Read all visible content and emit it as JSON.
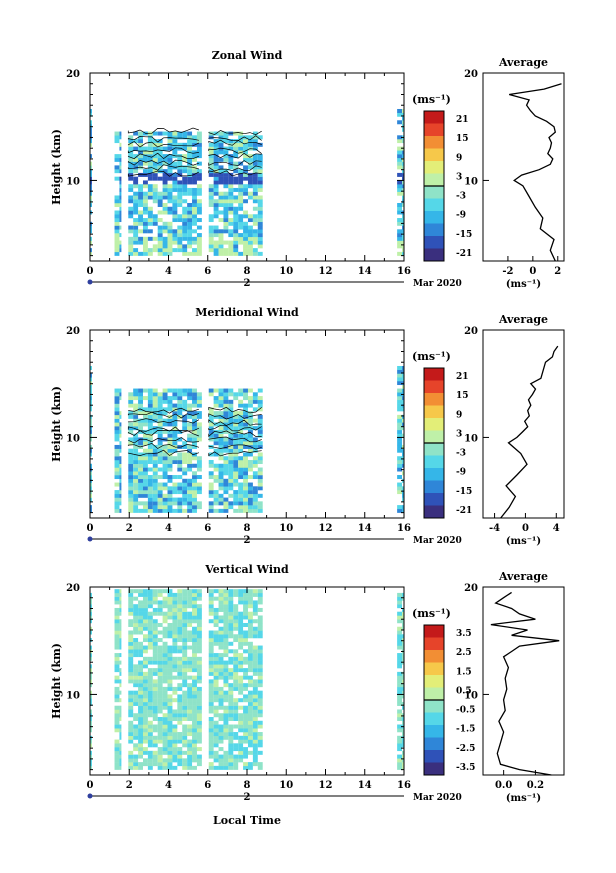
{
  "figure": {
    "xlabel": "Local Time",
    "date_label": "Mar 2020",
    "day_label": "2"
  },
  "chart_data": [
    {
      "type": "heatmap",
      "title": "Zonal Wind",
      "ylabel": "Height (km)",
      "units": "(ms⁻¹)",
      "xlim": [
        0,
        16
      ],
      "ylim": [
        2.5,
        20
      ],
      "xticks": [
        "0",
        "2",
        "4",
        "6",
        "8",
        "10",
        "12",
        "14",
        "16"
      ],
      "yticks": [
        "10",
        "20"
      ],
      "colorbar_ticks": [
        "21",
        "15",
        "9",
        "3",
        "-3",
        "-9",
        "-15",
        "-21"
      ],
      "data_intervals": [
        [
          0,
          0.1
        ],
        [
          1.25,
          1.6
        ],
        [
          1.95,
          5.7
        ],
        [
          6.05,
          8.8
        ],
        [
          15.65,
          16
        ]
      ],
      "top_km": 14.2,
      "profile": {
        "title": "Average",
        "xlabel": "(ms⁻¹)",
        "xlim": [
          -4,
          2.5
        ],
        "xticks": [
          "-2",
          "0",
          "2"
        ],
        "heights": [
          2.5,
          3.5,
          4.5,
          5.5,
          6.5,
          7.5,
          8.5,
          9.5,
          10.0,
          10.5,
          11.0,
          11.5,
          12.0,
          12.5,
          13.0,
          13.5,
          14.0,
          14.5,
          15.0,
          15.5,
          16.0,
          16.5,
          17.0,
          17.5,
          18.0,
          18.5,
          19.0
        ],
        "values": [
          1.8,
          1.4,
          1.7,
          0.6,
          0.8,
          0.2,
          -0.3,
          -0.8,
          -1.5,
          -0.9,
          0.5,
          1.4,
          1.6,
          1.2,
          1.4,
          1.5,
          1.3,
          1.8,
          1.7,
          1.1,
          0.2,
          -0.2,
          -0.5,
          -0.3,
          -1.9,
          0.9,
          2.3
        ]
      }
    },
    {
      "type": "heatmap",
      "title": "Meridional Wind",
      "ylabel": "Height (km)",
      "units": "(ms⁻¹)",
      "xlim": [
        0,
        16
      ],
      "ylim": [
        2.5,
        20
      ],
      "xticks": [
        "0",
        "2",
        "4",
        "6",
        "8",
        "10",
        "12",
        "14",
        "16"
      ],
      "yticks": [
        "10",
        "20"
      ],
      "colorbar_ticks": [
        "21",
        "15",
        "9",
        "3",
        "-3",
        "-9",
        "-15",
        "-21"
      ],
      "data_intervals": [
        [
          0,
          0.1
        ],
        [
          1.25,
          1.6
        ],
        [
          1.95,
          5.7
        ],
        [
          6.05,
          8.8
        ],
        [
          15.65,
          16
        ]
      ],
      "top_km": 14.5,
      "profile": {
        "title": "Average",
        "xlabel": "(ms⁻¹)",
        "xlim": [
          -5.5,
          5
        ],
        "xticks": [
          "-4",
          "0",
          "4"
        ],
        "heights": [
          2.5,
          3.5,
          4.5,
          5.5,
          6.5,
          7.5,
          8.5,
          9.5,
          10.0,
          10.5,
          11.0,
          11.5,
          12.0,
          12.5,
          13.0,
          13.5,
          14.0,
          14.5,
          15.0,
          15.5,
          17.0,
          17.5,
          18.0,
          18.5
        ],
        "values": [
          -3.2,
          -2.1,
          -1.3,
          -2.5,
          -1.1,
          0.2,
          -0.6,
          -2.2,
          -1.1,
          -0.4,
          0.3,
          -0.1,
          0.5,
          0.3,
          0.7,
          0.4,
          0.9,
          1.3,
          0.7,
          2.0,
          2.6,
          3.5,
          3.7,
          4.2
        ]
      }
    },
    {
      "type": "heatmap",
      "title": "Vertical Wind",
      "ylabel": "Height (km)",
      "units": "(ms⁻¹)",
      "xlim": [
        0,
        16
      ],
      "ylim": [
        2.5,
        20
      ],
      "xticks": [
        "0",
        "2",
        "4",
        "6",
        "8",
        "10",
        "12",
        "14",
        "16"
      ],
      "yticks": [
        "10",
        "20"
      ],
      "colorbar_ticks": [
        "3.5",
        "2.5",
        "1.5",
        "0.5",
        "-0.5",
        "-1.5",
        "-2.5",
        "-3.5"
      ],
      "data_intervals": [
        [
          0,
          0.1
        ],
        [
          1.25,
          1.6
        ],
        [
          1.95,
          5.7
        ],
        [
          6.05,
          8.8
        ],
        [
          15.65,
          16
        ]
      ],
      "top_km": 19.6,
      "profile": {
        "title": "Average",
        "xlabel": "(ms⁻¹)",
        "xlim": [
          -0.13,
          0.38
        ],
        "xticks": [
          "0.0",
          "0.2"
        ],
        "heights": [
          2.5,
          3.0,
          3.5,
          4.5,
          5.5,
          6.5,
          7.5,
          8.5,
          9.5,
          10.5,
          11.5,
          12.5,
          13.5,
          14.0,
          14.5,
          15.0,
          15.5,
          16.0,
          16.5,
          17.0,
          17.5,
          18.0,
          18.5,
          19.0,
          19.5
        ],
        "values": [
          0.3,
          0.1,
          -0.02,
          -0.04,
          -0.02,
          0.0,
          -0.03,
          0.01,
          0.0,
          0.02,
          0.01,
          0.03,
          0.0,
          0.05,
          0.1,
          0.35,
          0.05,
          0.15,
          -0.08,
          0.2,
          0.1,
          0.05,
          -0.05,
          0.0,
          0.05
        ]
      }
    }
  ]
}
